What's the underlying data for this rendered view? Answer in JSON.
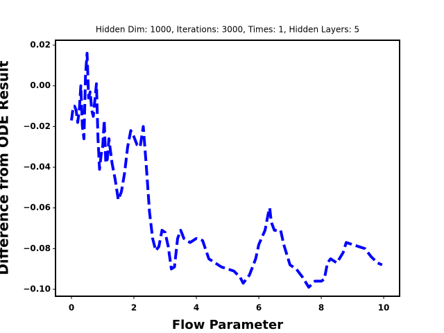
{
  "chart_data": {
    "type": "line",
    "title": "Hidden Dim: 1000, Iterations: 3000, Times: 1, Hidden Layers: 5",
    "xlabel": "Flow Parameter",
    "ylabel": "Difference from ODE Result",
    "x": [
      0,
      0.05,
      0.1,
      0.15,
      0.2,
      0.25,
      0.3,
      0.35,
      0.4,
      0.45,
      0.5,
      0.55,
      0.6,
      0.65,
      0.7,
      0.75,
      0.8,
      0.85,
      0.9,
      0.95,
      1.0,
      1.05,
      1.1,
      1.15,
      1.2,
      1.3,
      1.4,
      1.5,
      1.6,
      1.7,
      1.8,
      1.9,
      2.0,
      2.1,
      2.2,
      2.3,
      2.4,
      2.5,
      2.6,
      2.7,
      2.8,
      2.9,
      3.0,
      3.1,
      3.2,
      3.3,
      3.4,
      3.5,
      3.6,
      3.8,
      4.0,
      4.2,
      4.4,
      4.6,
      4.8,
      5.0,
      5.2,
      5.4,
      5.5,
      5.7,
      5.9,
      6.0,
      6.2,
      6.3,
      6.35,
      6.4,
      6.5,
      6.7,
      6.8,
      7.0,
      7.2,
      7.4,
      7.6,
      7.8,
      8.0,
      8.1,
      8.2,
      8.3,
      8.5,
      8.7,
      8.8,
      9.0,
      9.2,
      9.4,
      9.6,
      9.8,
      9.95
    ],
    "series": [
      {
        "name": "difference",
        "color": "#0000ff",
        "values": [
          -0.017,
          -0.011,
          -0.01,
          -0.012,
          -0.018,
          -0.012,
          0.0,
          -0.02,
          -0.026,
          0.005,
          0.016,
          -0.006,
          -0.003,
          -0.012,
          -0.015,
          -0.007,
          0.001,
          -0.026,
          -0.041,
          -0.034,
          -0.03,
          -0.017,
          -0.038,
          -0.036,
          -0.026,
          -0.038,
          -0.046,
          -0.056,
          -0.052,
          -0.043,
          -0.03,
          -0.022,
          -0.025,
          -0.029,
          -0.03,
          -0.02,
          -0.04,
          -0.062,
          -0.075,
          -0.081,
          -0.079,
          -0.071,
          -0.072,
          -0.079,
          -0.09,
          -0.089,
          -0.075,
          -0.071,
          -0.075,
          -0.077,
          -0.075,
          -0.076,
          -0.085,
          -0.087,
          -0.089,
          -0.09,
          -0.091,
          -0.094,
          -0.097,
          -0.093,
          -0.085,
          -0.078,
          -0.071,
          -0.063,
          -0.06,
          -0.067,
          -0.071,
          -0.071,
          -0.078,
          -0.088,
          -0.09,
          -0.094,
          -0.099,
          -0.096,
          -0.096,
          -0.095,
          -0.087,
          -0.085,
          -0.087,
          -0.082,
          -0.077,
          -0.078,
          -0.079,
          -0.08,
          -0.084,
          -0.087,
          -0.088
        ]
      }
    ],
    "xlim": [
      -0.511,
      10.51
    ],
    "ylim": [
      -0.1034,
      0.0224
    ],
    "xticks": [
      0,
      2,
      4,
      6,
      8,
      10
    ],
    "yticks": [
      {
        "value": -0.1,
        "label": "−0.10"
      },
      {
        "value": -0.08,
        "label": "−0.08"
      },
      {
        "value": -0.06,
        "label": "−0.06"
      },
      {
        "value": -0.04,
        "label": "−0.04"
      },
      {
        "value": -0.02,
        "label": "−0.02"
      },
      {
        "value": 0,
        "label": "0.00"
      },
      0.02
    ],
    "line_style": "dashed"
  }
}
